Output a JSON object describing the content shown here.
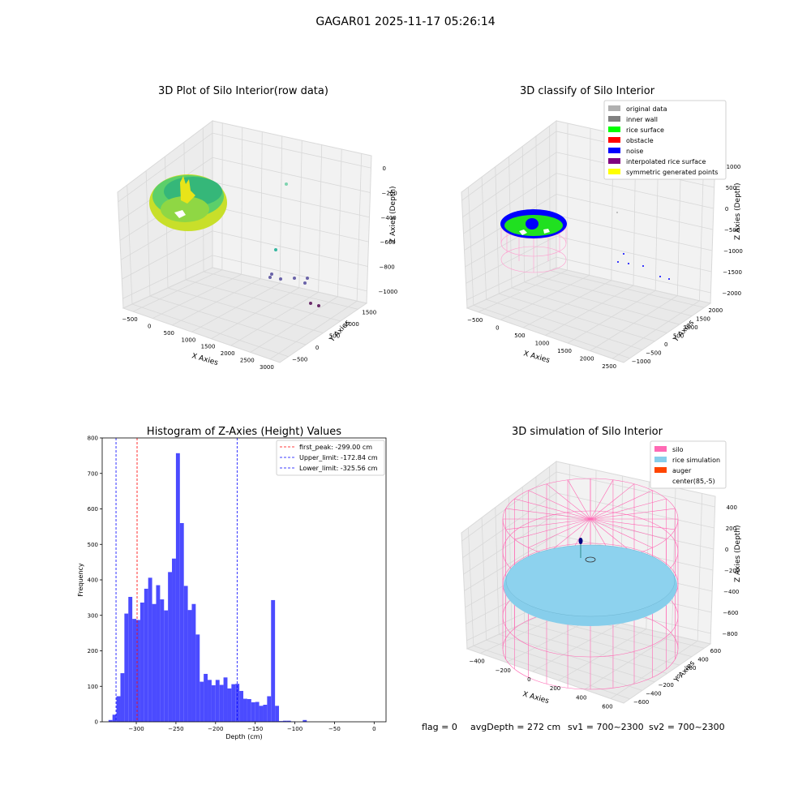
{
  "figure": {
    "suptitle": "GAGAR01 2025-11-17 05:26:14",
    "footer": {
      "flag": "flag = 0",
      "avg_depth": "avgDepth = 272 cm",
      "sv1": "sv1 = 700~2300",
      "sv2": "sv2 = 700~2300"
    }
  },
  "colors": {
    "hist_bar": "#4b4bff",
    "first_peak_line": "#ff0000",
    "limit_line": "#0000ff",
    "pane": "#f2f2f2",
    "grid": "#d7d7d7",
    "silo": "#ff69b4",
    "rice_simulation": "#87ceeb",
    "auger": "#ff4500",
    "original_data": "#b0b0b0",
    "inner_wall": "#808080",
    "rice_surface": "#00ff00",
    "obstacle": "#ff0000",
    "noise": "#0000ff",
    "interpolated_rice_surface": "#800080",
    "symmetric_generated_points": "#ffff00"
  },
  "chart_data": [
    {
      "type": "scatter",
      "title": "3D Plot of Silo Interior(row data)",
      "xlabel": "X Axies",
      "ylabel": "Y Axies",
      "zlabel": "Z Axies (Depth)",
      "x_ticks": [
        "−500",
        "0",
        "500",
        "1000",
        "1500",
        "2000",
        "2500",
        "3000"
      ],
      "y_ticks": [
        "−500",
        "0",
        "500",
        "1000",
        "1500"
      ],
      "z_ticks": [
        "0",
        "−200",
        "−400",
        "−600",
        "−800",
        "−1000"
      ],
      "description_points": "dense ring of points at depth approx −100 to −400 plus a few scattered outliers"
    },
    {
      "type": "scatter",
      "title": "3D classify of Silo Interior",
      "xlabel": "X Axies",
      "ylabel": "Y Axies",
      "zlabel": "Z Axies (Depth)",
      "x_ticks": [
        "−500",
        "0",
        "500",
        "1000",
        "1500",
        "2000",
        "2500"
      ],
      "y_ticks": [
        "−1000",
        "−500",
        "0",
        "500",
        "1000",
        "1500",
        "2000"
      ],
      "z_ticks": [
        "1000",
        "500",
        "0",
        "−500",
        "−1000",
        "−1500",
        "−2000"
      ],
      "legend": [
        "original data",
        "inner wall",
        "rice surface",
        "obstacle",
        "noise",
        "interpolated rice surface",
        "symmetric generated points"
      ],
      "legend_position": "top-right"
    },
    {
      "type": "bar",
      "title": "Histogram of Z-Axies (Height) Values",
      "xlabel": "Depth (cm)",
      "ylabel": "Frequency",
      "xlim": [
        -343,
        15
      ],
      "ylim": [
        0,
        800
      ],
      "x_ticks": [
        -300,
        -250,
        -200,
        -150,
        -100,
        -50,
        0
      ],
      "y_ticks": [
        0,
        100,
        200,
        300,
        400,
        500,
        600,
        700,
        800
      ],
      "bin_start": -335,
      "bin_width": 5,
      "values": [
        5,
        20,
        72,
        137,
        305,
        352,
        290,
        287,
        336,
        375,
        406,
        332,
        385,
        345,
        314,
        422,
        460,
        757,
        560,
        383,
        315,
        332,
        246,
        113,
        135,
        118,
        103,
        118,
        104,
        125,
        94,
        106,
        107,
        87,
        65,
        64,
        55,
        56,
        45,
        48,
        72,
        343,
        45,
        2,
        3,
        3,
        1,
        0,
        0,
        5,
        0
      ],
      "vlines": [
        {
          "x": -299.0,
          "label": "first_peak: -299.00 cm",
          "color": "red"
        },
        {
          "x": -172.84,
          "label": "Upper_limit: -172.84 cm",
          "color": "blue"
        },
        {
          "x": -325.56,
          "label": "Lower_limit: -325.56 cm",
          "color": "blue"
        }
      ],
      "legend_position": "top-right"
    },
    {
      "type": "scatter",
      "title": "3D simulation of Silo Interior",
      "xlabel": "X Axies",
      "ylabel": "Y Axies",
      "zlabel": "Z Axies (Depth)",
      "x_ticks": [
        "−400",
        "−200",
        "0",
        "200",
        "400",
        "600"
      ],
      "y_ticks": [
        "−600",
        "−400",
        "−200",
        "0",
        "200",
        "400",
        "600"
      ],
      "z_ticks": [
        "400",
        "200",
        "0",
        "−200",
        "−400",
        "−600",
        "−800"
      ],
      "legend": [
        "silo",
        "rice simulation",
        "auger",
        "center(85,-5)"
      ],
      "legend_position": "top-right"
    }
  ]
}
